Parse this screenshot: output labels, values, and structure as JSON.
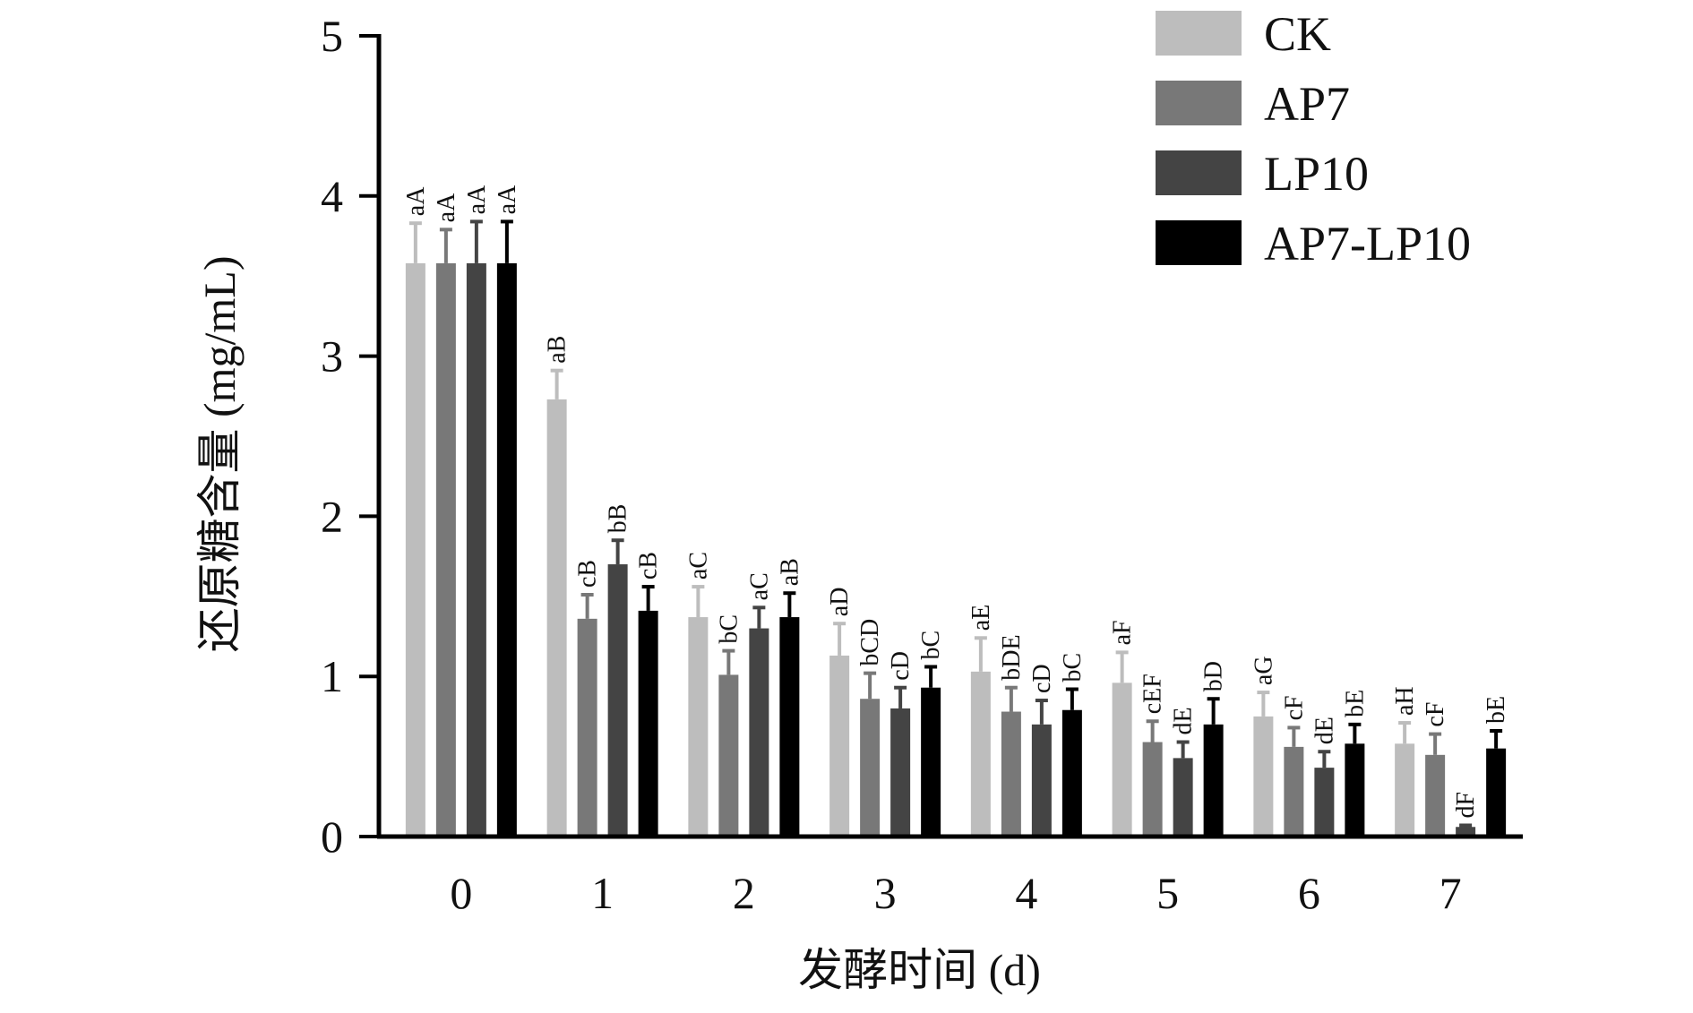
{
  "chart_data": {
    "type": "bar",
    "title": "",
    "xlabel": "发酵时间 (d)",
    "ylabel": "还原糖含量 (mg/mL)",
    "ylim": [
      0,
      5
    ],
    "yticks": [
      "0",
      "1",
      "2",
      "3",
      "4",
      "5"
    ],
    "categories": [
      "0",
      "1",
      "2",
      "3",
      "4",
      "5",
      "6",
      "7"
    ],
    "legend_position": "top-right",
    "grid": false,
    "series": [
      {
        "name": "CK",
        "color": "#bdbdbd",
        "values": [
          3.58,
          2.73,
          1.37,
          1.13,
          1.03,
          0.96,
          0.75,
          0.58
        ],
        "errors": [
          0.25,
          0.18,
          0.19,
          0.2,
          0.21,
          0.19,
          0.15,
          0.13
        ],
        "labels": [
          "aA",
          "aB",
          "aC",
          "aD",
          "aE",
          "aF",
          "aG",
          "aH"
        ]
      },
      {
        "name": "AP7",
        "color": "#787878",
        "values": [
          3.58,
          1.36,
          1.01,
          0.86,
          0.78,
          0.59,
          0.56,
          0.51
        ],
        "errors": [
          0.21,
          0.15,
          0.15,
          0.16,
          0.15,
          0.13,
          0.12,
          0.13
        ],
        "labels": [
          "aA",
          "cB",
          "bC",
          "bCD",
          "bDE",
          "cEF",
          "cF",
          "cF"
        ]
      },
      {
        "name": "LP10",
        "color": "#444444",
        "values": [
          3.58,
          1.7,
          1.3,
          0.8,
          0.7,
          0.49,
          0.43,
          0.06
        ],
        "errors": [
          0.26,
          0.15,
          0.13,
          0.13,
          0.15,
          0.1,
          0.1,
          0.01
        ],
        "labels": [
          "aA",
          "bB",
          "aC",
          "cD",
          "cD",
          "dE",
          "dE",
          "dF"
        ]
      },
      {
        "name": "AP7-LP10",
        "color": "#000000",
        "values": [
          3.58,
          1.41,
          1.37,
          0.93,
          0.79,
          0.7,
          0.58,
          0.55
        ],
        "errors": [
          0.26,
          0.15,
          0.15,
          0.13,
          0.13,
          0.16,
          0.12,
          0.11
        ],
        "labels": [
          "aA",
          "cB",
          "aB",
          "bC",
          "bC",
          "bD",
          "bE",
          "bE"
        ]
      }
    ]
  }
}
